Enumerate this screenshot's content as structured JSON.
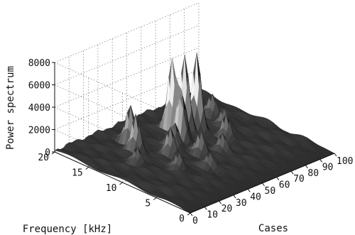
{
  "chart_data": {
    "type": "surface3d",
    "title": "",
    "xlabel": "Cases",
    "ylabel": "Frequency [kHz]",
    "zlabel": "Power spectrum",
    "x_ticks": [
      0,
      10,
      20,
      30,
      40,
      50,
      60,
      70,
      80,
      90,
      100
    ],
    "y_ticks": [
      0,
      5,
      10,
      15,
      20
    ],
    "z_ticks": [
      0,
      2000,
      4000,
      6000,
      8000
    ],
    "xlim": [
      0,
      100
    ],
    "ylim": [
      0,
      20
    ],
    "zlim": [
      0,
      8000
    ],
    "grid": true,
    "colormap": "gray",
    "peaks": [
      {
        "case": 62,
        "freq_khz": 14,
        "power": 6800
      },
      {
        "case": 68,
        "freq_khz": 13.5,
        "power": 7000
      },
      {
        "case": 58,
        "freq_khz": 15,
        "power": 6200
      },
      {
        "case": 55,
        "freq_khz": 13,
        "power": 4600
      },
      {
        "case": 34,
        "freq_khz": 16,
        "power": 3200
      },
      {
        "case": 28,
        "freq_khz": 14,
        "power": 3300
      },
      {
        "case": 38,
        "freq_khz": 11,
        "power": 2600
      },
      {
        "case": 45,
        "freq_khz": 12,
        "power": 2400
      },
      {
        "case": 20,
        "freq_khz": 12,
        "power": 1400
      },
      {
        "case": 50,
        "freq_khz": 9,
        "power": 1800
      },
      {
        "case": 60,
        "freq_khz": 8,
        "power": 1600
      },
      {
        "case": 72,
        "freq_khz": 10,
        "power": 2000
      },
      {
        "case": 80,
        "freq_khz": 12,
        "power": 1500
      },
      {
        "case": 30,
        "freq_khz": 8,
        "power": 1600
      },
      {
        "case": 42,
        "freq_khz": 6,
        "power": 1200
      },
      {
        "case": 86,
        "freq_khz": 15,
        "power": 1700
      }
    ]
  }
}
